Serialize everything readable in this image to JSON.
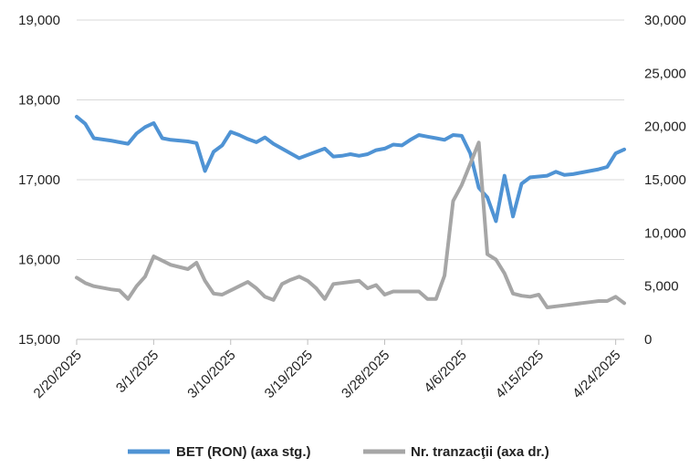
{
  "chart_data": {
    "type": "line",
    "y_left_ticks": [
      "15,000",
      "16,000",
      "17,000",
      "18,000",
      "19,000"
    ],
    "y_left_range": [
      15000,
      19000
    ],
    "y_right_ticks": [
      "0",
      "5,000",
      "10,000",
      "15,000",
      "20,000",
      "25,000",
      "30,000"
    ],
    "y_right_range": [
      0,
      30000
    ],
    "x_range": [
      "2025-02-20",
      "2025-04-25"
    ],
    "x_ticks": [
      "2/20/2025",
      "3/1/2025",
      "3/10/2025",
      "3/19/2025",
      "3/28/2025",
      "4/6/2025",
      "4/15/2025",
      "4/24/2025"
    ],
    "x_tick_dates": [
      "2025-02-20",
      "2025-03-01",
      "2025-03-10",
      "2025-03-19",
      "2025-03-28",
      "2025-04-06",
      "2025-04-15",
      "2025-04-24"
    ],
    "grid": "horizontal",
    "legend_position": "bottom",
    "series": [
      {
        "name": "BET (RON) (axa stg.)",
        "axis": "left",
        "color": "#4f93d4",
        "points": [
          [
            "2025-02-20",
            17790
          ],
          [
            "2025-02-21",
            17700
          ],
          [
            "2025-02-22",
            17520
          ],
          [
            "2025-02-24",
            17490
          ],
          [
            "2025-02-25",
            17470
          ],
          [
            "2025-02-26",
            17450
          ],
          [
            "2025-02-27",
            17580
          ],
          [
            "2025-02-28",
            17660
          ],
          [
            "2025-03-01",
            17710
          ],
          [
            "2025-03-02",
            17520
          ],
          [
            "2025-03-03",
            17500
          ],
          [
            "2025-03-05",
            17480
          ],
          [
            "2025-03-06",
            17460
          ],
          [
            "2025-03-07",
            17110
          ],
          [
            "2025-03-08",
            17350
          ],
          [
            "2025-03-09",
            17430
          ],
          [
            "2025-03-10",
            17600
          ],
          [
            "2025-03-11",
            17560
          ],
          [
            "2025-03-12",
            17510
          ],
          [
            "2025-03-13",
            17470
          ],
          [
            "2025-03-14",
            17530
          ],
          [
            "2025-03-15",
            17450
          ],
          [
            "2025-03-16",
            17390
          ],
          [
            "2025-03-17",
            17330
          ],
          [
            "2025-03-18",
            17270
          ],
          [
            "2025-03-19",
            17310
          ],
          [
            "2025-03-20",
            17350
          ],
          [
            "2025-03-21",
            17390
          ],
          [
            "2025-03-22",
            17290
          ],
          [
            "2025-03-23",
            17300
          ],
          [
            "2025-03-24",
            17320
          ],
          [
            "2025-03-25",
            17300
          ],
          [
            "2025-03-26",
            17320
          ],
          [
            "2025-03-27",
            17370
          ],
          [
            "2025-03-28",
            17390
          ],
          [
            "2025-03-29",
            17440
          ],
          [
            "2025-03-30",
            17430
          ],
          [
            "2025-03-31",
            17500
          ],
          [
            "2025-04-01",
            17560
          ],
          [
            "2025-04-02",
            17540
          ],
          [
            "2025-04-03",
            17520
          ],
          [
            "2025-04-04",
            17500
          ],
          [
            "2025-04-05",
            17560
          ],
          [
            "2025-04-06",
            17550
          ],
          [
            "2025-04-07",
            17330
          ],
          [
            "2025-04-08",
            16900
          ],
          [
            "2025-04-09",
            16780
          ],
          [
            "2025-04-10",
            16480
          ],
          [
            "2025-04-11",
            17050
          ],
          [
            "2025-04-12",
            16540
          ],
          [
            "2025-04-13",
            16950
          ],
          [
            "2025-04-14",
            17030
          ],
          [
            "2025-04-15",
            17040
          ],
          [
            "2025-04-16",
            17050
          ],
          [
            "2025-04-17",
            17100
          ],
          [
            "2025-04-18",
            17060
          ],
          [
            "2025-04-19",
            17070
          ],
          [
            "2025-04-20",
            17090
          ],
          [
            "2025-04-21",
            17110
          ],
          [
            "2025-04-22",
            17130
          ],
          [
            "2025-04-23",
            17160
          ],
          [
            "2025-04-24",
            17330
          ],
          [
            "2025-04-25",
            17380
          ]
        ]
      },
      {
        "name": "Nr. tranzacţii (axa dr.)",
        "axis": "right",
        "color": "#a6a6a6",
        "points": [
          [
            "2025-02-20",
            5800
          ],
          [
            "2025-02-21",
            5300
          ],
          [
            "2025-02-22",
            5000
          ],
          [
            "2025-02-24",
            4700
          ],
          [
            "2025-02-25",
            4600
          ],
          [
            "2025-02-26",
            3800
          ],
          [
            "2025-02-27",
            5000
          ],
          [
            "2025-02-28",
            5900
          ],
          [
            "2025-03-01",
            7800
          ],
          [
            "2025-03-02",
            7400
          ],
          [
            "2025-03-03",
            7000
          ],
          [
            "2025-03-05",
            6600
          ],
          [
            "2025-03-06",
            7200
          ],
          [
            "2025-03-07",
            5500
          ],
          [
            "2025-03-08",
            4300
          ],
          [
            "2025-03-09",
            4200
          ],
          [
            "2025-03-10",
            4600
          ],
          [
            "2025-03-11",
            5000
          ],
          [
            "2025-03-12",
            5400
          ],
          [
            "2025-03-13",
            4800
          ],
          [
            "2025-03-14",
            4000
          ],
          [
            "2025-03-15",
            3700
          ],
          [
            "2025-03-16",
            5200
          ],
          [
            "2025-03-17",
            5600
          ],
          [
            "2025-03-18",
            5900
          ],
          [
            "2025-03-19",
            5500
          ],
          [
            "2025-03-20",
            4800
          ],
          [
            "2025-03-21",
            3800
          ],
          [
            "2025-03-22",
            5200
          ],
          [
            "2025-03-23",
            5300
          ],
          [
            "2025-03-24",
            5400
          ],
          [
            "2025-03-25",
            5500
          ],
          [
            "2025-03-26",
            4800
          ],
          [
            "2025-03-27",
            5100
          ],
          [
            "2025-03-28",
            4200
          ],
          [
            "2025-03-29",
            4500
          ],
          [
            "2025-03-30",
            4500
          ],
          [
            "2025-03-31",
            4500
          ],
          [
            "2025-04-01",
            4500
          ],
          [
            "2025-04-02",
            3800
          ],
          [
            "2025-04-03",
            3800
          ],
          [
            "2025-04-04",
            6000
          ],
          [
            "2025-04-05",
            13000
          ],
          [
            "2025-04-06",
            14500
          ],
          [
            "2025-04-07",
            16500
          ],
          [
            "2025-04-08",
            18500
          ],
          [
            "2025-04-09",
            8000
          ],
          [
            "2025-04-10",
            7500
          ],
          [
            "2025-04-11",
            6200
          ],
          [
            "2025-04-12",
            4300
          ],
          [
            "2025-04-13",
            4100
          ],
          [
            "2025-04-14",
            4000
          ],
          [
            "2025-04-15",
            4200
          ],
          [
            "2025-04-16",
            3000
          ],
          [
            "2025-04-17",
            3100
          ],
          [
            "2025-04-18",
            3200
          ],
          [
            "2025-04-19",
            3300
          ],
          [
            "2025-04-20",
            3400
          ],
          [
            "2025-04-21",
            3500
          ],
          [
            "2025-04-22",
            3600
          ],
          [
            "2025-04-23",
            3600
          ],
          [
            "2025-04-24",
            4000
          ],
          [
            "2025-04-25",
            3400
          ]
        ]
      }
    ]
  }
}
